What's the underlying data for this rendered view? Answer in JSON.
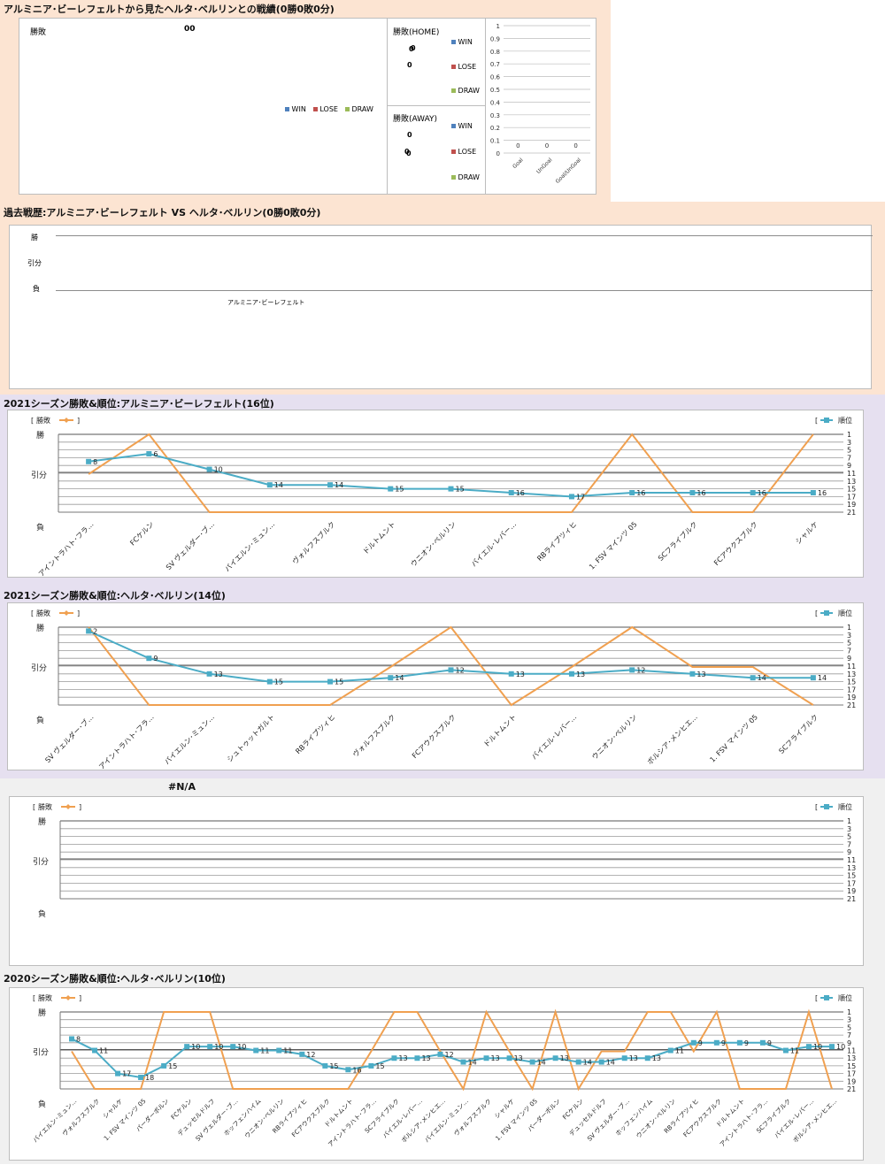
{
  "colors": {
    "result": "#f0a050",
    "rank": "#4bacc6",
    "win": "#4f81bd",
    "lose": "#c0504d",
    "draw": "#9bbb59",
    "grid": "#8c8c8c"
  },
  "headToHead": {
    "title": "アルミニア･ビーレフェルトから見たヘルタ･ベルリンとの戦績(0勝0敗0分)",
    "total": {
      "label": "勝敗",
      "value": "00"
    },
    "home": {
      "label": "勝敗(HOME)",
      "values": [
        "0",
        "0",
        "0"
      ]
    },
    "away": {
      "label": "勝敗(AWAY)",
      "values": [
        "0",
        "0",
        "0"
      ]
    },
    "legend": [
      "WIN",
      "LOSE",
      "DRAW"
    ],
    "goals": {
      "categories": [
        "Goal",
        "UnGoal",
        "Goal/UnGoal"
      ],
      "values": [
        0,
        0,
        0
      ],
      "ticks": [
        "1",
        "0.9",
        "0.8",
        "0.7",
        "0.6",
        "0.5",
        "0.4",
        "0.3",
        "0.2",
        "0.1",
        "0"
      ]
    }
  },
  "history": {
    "title": "過去戦歴:アルミニア･ビーレフェルト VS ヘルタ･ベルリン(0勝0敗0分)",
    "ylabels": [
      "勝",
      "引分",
      "負"
    ],
    "xlabel": "アルミニア･ビーレフェルト"
  },
  "chart_data": [
    {
      "type": "line",
      "title": "2021シーズン勝敗&順位:アルミニア･ビーレフェルト(16位)",
      "legend_left": "勝敗",
      "legend_right": "順位",
      "yleft": [
        "勝",
        "引分",
        "負"
      ],
      "yright": [
        "1",
        "3",
        "5",
        "7",
        "9",
        "11",
        "13",
        "15",
        "17",
        "19",
        "21"
      ],
      "categories": [
        "アイントラハト･フラ…",
        "FCケルン",
        "SV ヴェルダー･ブ…",
        "バイエルン･ミュン…",
        "ヴォルフスブルク",
        "ドルトムント",
        "ウニオン･ベルリン",
        "バイエル･レバー…",
        "RBライプツィヒ",
        "1. FSV マインツ 05",
        "SCフライブルク",
        "FCアウクスブルク",
        "シャルケ"
      ],
      "series": [
        {
          "name": "勝敗",
          "values": [
            "D",
            "W",
            "L",
            "L",
            "L",
            "L",
            "L",
            "L",
            "L",
            "W",
            "L",
            "L",
            "W"
          ]
        },
        {
          "name": "順位",
          "values": [
            8,
            6,
            10,
            14,
            14,
            15,
            15,
            16,
            17,
            16,
            16,
            16,
            16
          ]
        }
      ]
    },
    {
      "type": "line",
      "title": "2021シーズン勝敗&順位:ヘルタ･ベルリン(14位)",
      "legend_left": "勝敗",
      "legend_right": "順位",
      "yleft": [
        "勝",
        "引分",
        "負"
      ],
      "yright": [
        "1",
        "3",
        "5",
        "7",
        "9",
        "11",
        "13",
        "15",
        "17",
        "19",
        "21"
      ],
      "categories": [
        "SV ヴェルダー･ブ…",
        "アイントラハト･フラ…",
        "バイエルン･ミュン…",
        "シュトゥットガルト",
        "RBライプツィヒ",
        "ヴォルフスブルク",
        "FCアウクスブルク",
        "ドルトムント",
        "バイエル･レバー…",
        "ウニオン･ベルリン",
        "ボルシア･メンヒエ…",
        "1. FSV マインツ 05",
        "SCフライブルク"
      ],
      "series": [
        {
          "name": "勝敗",
          "values": [
            "W",
            "L",
            "L",
            "L",
            "L",
            "D",
            "W",
            "L",
            "D",
            "W",
            "D",
            "D",
            "L"
          ]
        },
        {
          "name": "順位",
          "values": [
            2,
            9,
            13,
            15,
            15,
            14,
            12,
            13,
            13,
            12,
            13,
            14,
            14
          ]
        }
      ]
    },
    {
      "type": "line",
      "title": "#N/A",
      "legend_left": "勝敗",
      "legend_right": "順位",
      "yleft": [
        "勝",
        "引分",
        "負"
      ],
      "yright": [
        "1",
        "3",
        "5",
        "7",
        "9",
        "11",
        "13",
        "15",
        "17",
        "19",
        "21"
      ],
      "categories": [],
      "series": []
    },
    {
      "type": "line",
      "title": "2020シーズン勝敗&順位:ヘルタ･ベルリン(10位)",
      "legend_left": "勝敗",
      "legend_right": "順位",
      "yleft": [
        "勝",
        "引分",
        "負"
      ],
      "yright": [
        "1",
        "3",
        "5",
        "7",
        "9",
        "11",
        "13",
        "15",
        "17",
        "19",
        "21"
      ],
      "categories": [
        "バイエルン･ミュン…",
        "ヴォルフスブルク",
        "シャルケ",
        "1. FSV マインツ 05",
        "パーダーボルン",
        "FCケルン",
        "デュッセルドルフ",
        "SV ヴェルダー･ブ…",
        "ホッフェンハイム",
        "ウニオン･ベルリン",
        "RBライプツィヒ",
        "FCアウクスブルク",
        "ドルトムント",
        "アイントラハト･フラ…",
        "SCフライブルク",
        "バイエル･レバー…",
        "ボルシア･メンヒエ…",
        "バイエルン･ミュン…",
        "ヴォルフスブルク",
        "シャルケ",
        "1. FSV マインツ 05",
        "パーダーボルン",
        "FCケルン",
        "デュッセルドルフ",
        "SV ヴェルダー･ブ…",
        "ホッフェンハイム",
        "ウニオン･ベルリン",
        "RBライプツィヒ",
        "FCアウクスブルク",
        "ドルトムント",
        "アイントラハト･フラ…",
        "SCフライブルク",
        "バイエル･レバー…",
        "ボルシア･メンヒエ…"
      ],
      "series": [
        {
          "name": "勝敗",
          "values": [
            "D",
            "L",
            "L",
            "L",
            "W",
            "W",
            "W",
            "L",
            "L",
            "L",
            "L",
            "L",
            "L",
            "D",
            "W",
            "W",
            "D",
            "L",
            "W",
            "D",
            "L",
            "W",
            "L",
            "D",
            "D",
            "W",
            "W",
            "D",
            "W",
            "L",
            "L",
            "L",
            "W",
            "L"
          ]
        },
        {
          "name": "順位",
          "values": [
            8,
            11,
            17,
            18,
            15,
            10,
            10,
            10,
            11,
            11,
            12,
            15,
            16,
            15,
            13,
            13,
            12,
            14,
            13,
            13,
            14,
            13,
            14,
            14,
            13,
            13,
            11,
            9,
            9,
            9,
            9,
            11,
            10,
            10
          ]
        }
      ]
    }
  ]
}
